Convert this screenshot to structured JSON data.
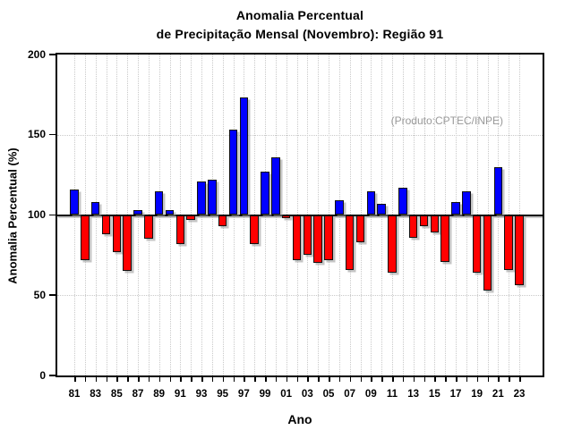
{
  "title": {
    "line1": "Anomalia Percentual",
    "line2": "de Precipitação Mensal (Novembro): Região 91"
  },
  "annotation": "(Produto:CPTEC/INPE)",
  "axes": {
    "ylabel": "Anomalia Percentual (%)",
    "xlabel": "Ano",
    "ytick_labels": [
      "0",
      "50",
      "100",
      "150",
      "200"
    ],
    "xtick_labels": [
      "81",
      "83",
      "85",
      "87",
      "89",
      "91",
      "93",
      "95",
      "97",
      "99",
      "01",
      "03",
      "05",
      "07",
      "09",
      "11",
      "13",
      "15",
      "17",
      "19",
      "21",
      "23"
    ]
  },
  "chart_data": {
    "type": "bar",
    "title": "Anomalia Percentual de Precipitação Mensal (Novembro): Região 91",
    "xlabel": "Ano",
    "ylabel": "Anomalia Percentual (%)",
    "ylim": [
      0,
      200
    ],
    "yticks": [
      0,
      50,
      100,
      150,
      200
    ],
    "baseline": 100,
    "grid": "dotted vertical line per year; dotted horizontal at 50, 100, 150; solid black line at 100",
    "legend_note": "blue = value above 100%, red = value below 100%",
    "color_above": "#0000ff",
    "color_below": "#ff0000",
    "years": [
      1981,
      1982,
      1983,
      1984,
      1985,
      1986,
      1987,
      1988,
      1989,
      1990,
      1991,
      1992,
      1993,
      1994,
      1995,
      1996,
      1997,
      1998,
      1999,
      2000,
      2001,
      2002,
      2003,
      2004,
      2005,
      2006,
      2007,
      2008,
      2009,
      2010,
      2011,
      2012,
      2013,
      2014,
      2015,
      2016,
      2017,
      2018,
      2019,
      2020,
      2021,
      2022,
      2023
    ],
    "values": [
      116,
      72,
      108,
      88,
      77,
      65,
      103,
      85,
      115,
      103,
      82,
      97,
      121,
      122,
      93,
      153,
      173,
      82,
      127,
      136,
      98,
      72,
      75,
      70,
      72,
      109,
      66,
      83,
      115,
      107,
      64,
      117,
      86,
      93,
      89,
      71,
      108,
      115,
      64,
      53,
      130,
      66,
      56
    ]
  }
}
